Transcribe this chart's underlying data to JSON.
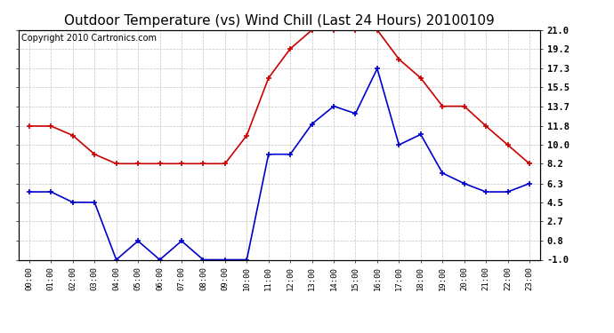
{
  "title": "Outdoor Temperature (vs) Wind Chill (Last 24 Hours) 20100109",
  "copyright": "Copyright 2010 Cartronics.com",
  "hours": [
    "00:00",
    "01:00",
    "02:00",
    "03:00",
    "04:00",
    "05:00",
    "06:00",
    "07:00",
    "08:00",
    "09:00",
    "10:00",
    "11:00",
    "12:00",
    "13:00",
    "14:00",
    "15:00",
    "16:00",
    "17:00",
    "18:00",
    "19:00",
    "20:00",
    "21:00",
    "22:00",
    "23:00"
  ],
  "red_data": [
    11.8,
    11.8,
    10.9,
    9.1,
    8.2,
    8.2,
    8.2,
    8.2,
    8.2,
    8.2,
    10.9,
    16.4,
    19.2,
    21.0,
    21.0,
    21.0,
    21.0,
    18.2,
    16.4,
    13.7,
    13.7,
    11.8,
    10.0,
    8.2
  ],
  "blue_data": [
    5.5,
    5.5,
    4.5,
    4.5,
    -1.0,
    0.8,
    -1.0,
    0.8,
    -1.0,
    -1.0,
    -1.0,
    9.1,
    9.1,
    12.0,
    13.7,
    13.0,
    17.3,
    10.0,
    11.0,
    7.3,
    6.3,
    5.5,
    5.5,
    6.3
  ],
  "ylim": [
    -1.0,
    21.0
  ],
  "yticks": [
    -1.0,
    0.8,
    2.7,
    4.5,
    6.3,
    8.2,
    10.0,
    11.8,
    13.7,
    15.5,
    17.3,
    19.2,
    21.0
  ],
  "red_color": "#cc0000",
  "blue_color": "#0000cc",
  "grid_color": "#bbbbbb",
  "bg_color": "#ffffff",
  "title_fontsize": 11,
  "copyright_fontsize": 7
}
